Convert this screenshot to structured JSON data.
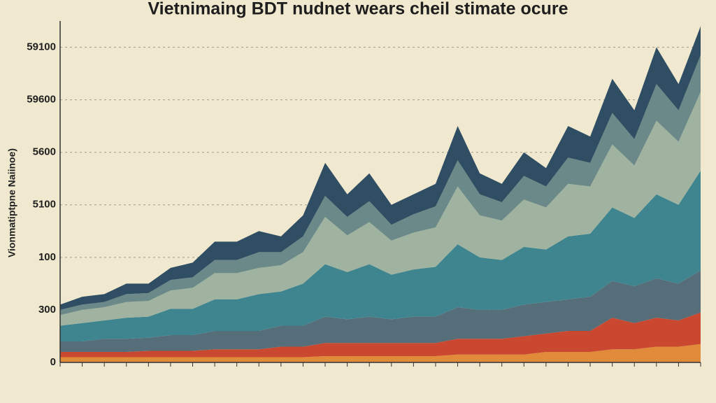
{
  "chart_data": {
    "type": "stacked_area",
    "title": "Vietnimaing BDT nudnet wears cheil stimate ocure",
    "y_label": "Vionmatiptpne Naiinoe)",
    "categories": [
      null,
      null,
      null,
      null,
      null,
      null,
      null,
      null,
      null,
      null,
      null,
      null,
      null,
      null,
      null,
      null,
      null,
      null,
      null,
      null,
      null,
      null,
      null,
      null,
      null,
      null,
      null,
      null,
      null,
      null
    ],
    "ylim": [
      0,
      6.5
    ],
    "yticks": [
      {
        "value": 0,
        "label": "0"
      },
      {
        "value": 1,
        "label": "300"
      },
      {
        "value": 2,
        "label": "100"
      },
      {
        "value": 3,
        "label": "5100"
      },
      {
        "value": 4,
        "label": "5600"
      },
      {
        "value": 5,
        "label": "59600"
      },
      {
        "value": 6,
        "label": "59100"
      }
    ],
    "grid": true,
    "series": [
      {
        "color": "#e08a3a",
        "values": [
          0.1,
          0.1,
          0.1,
          0.1,
          0.1,
          0.1,
          0.1,
          0.1,
          0.1,
          0.1,
          0.1,
          0.1,
          0.12,
          0.12,
          0.12,
          0.12,
          0.12,
          0.12,
          0.15,
          0.15,
          0.15,
          0.15,
          0.2,
          0.2,
          0.2,
          0.25,
          0.25,
          0.3,
          0.3,
          0.35
        ]
      },
      {
        "color": "#c9482f",
        "values": [
          0.1,
          0.1,
          0.1,
          0.1,
          0.12,
          0.12,
          0.12,
          0.15,
          0.15,
          0.15,
          0.2,
          0.2,
          0.25,
          0.25,
          0.25,
          0.25,
          0.25,
          0.25,
          0.3,
          0.3,
          0.3,
          0.35,
          0.35,
          0.4,
          0.4,
          0.6,
          0.5,
          0.55,
          0.5,
          0.6
        ]
      },
      {
        "color": "#566e7a",
        "values": [
          0.2,
          0.2,
          0.25,
          0.25,
          0.25,
          0.3,
          0.3,
          0.35,
          0.35,
          0.35,
          0.4,
          0.4,
          0.5,
          0.45,
          0.5,
          0.45,
          0.5,
          0.5,
          0.6,
          0.55,
          0.55,
          0.6,
          0.6,
          0.6,
          0.65,
          0.7,
          0.7,
          0.75,
          0.7,
          0.8
        ]
      },
      {
        "color": "#3f8590",
        "values": [
          0.3,
          0.35,
          0.35,
          0.4,
          0.4,
          0.5,
          0.5,
          0.6,
          0.6,
          0.7,
          0.65,
          0.8,
          1.0,
          0.9,
          1.0,
          0.85,
          0.9,
          0.95,
          1.2,
          1.0,
          0.95,
          1.1,
          1.0,
          1.2,
          1.2,
          1.4,
          1.3,
          1.6,
          1.5,
          1.9
        ]
      },
      {
        "color": "#9fb3a0",
        "values": [
          0.2,
          0.25,
          0.25,
          0.3,
          0.3,
          0.35,
          0.4,
          0.5,
          0.5,
          0.5,
          0.5,
          0.6,
          0.9,
          0.7,
          0.8,
          0.65,
          0.7,
          0.75,
          1.1,
          0.8,
          0.75,
          0.9,
          0.8,
          1.0,
          0.9,
          1.2,
          1.0,
          1.4,
          1.2,
          1.5
        ]
      },
      {
        "color": "#6b8988",
        "values": [
          0.1,
          0.1,
          0.1,
          0.15,
          0.15,
          0.2,
          0.2,
          0.25,
          0.25,
          0.3,
          0.25,
          0.3,
          0.4,
          0.35,
          0.4,
          0.3,
          0.35,
          0.4,
          0.5,
          0.4,
          0.35,
          0.45,
          0.4,
          0.5,
          0.45,
          0.6,
          0.5,
          0.7,
          0.6,
          0.7
        ]
      },
      {
        "color": "#2f4e63",
        "values": [
          0.1,
          0.15,
          0.15,
          0.2,
          0.18,
          0.23,
          0.28,
          0.35,
          0.35,
          0.4,
          0.3,
          0.4,
          0.63,
          0.43,
          0.53,
          0.38,
          0.38,
          0.43,
          0.65,
          0.4,
          0.35,
          0.45,
          0.35,
          0.6,
          0.5,
          0.65,
          0.55,
          0.7,
          0.5,
          0.55
        ]
      }
    ]
  }
}
